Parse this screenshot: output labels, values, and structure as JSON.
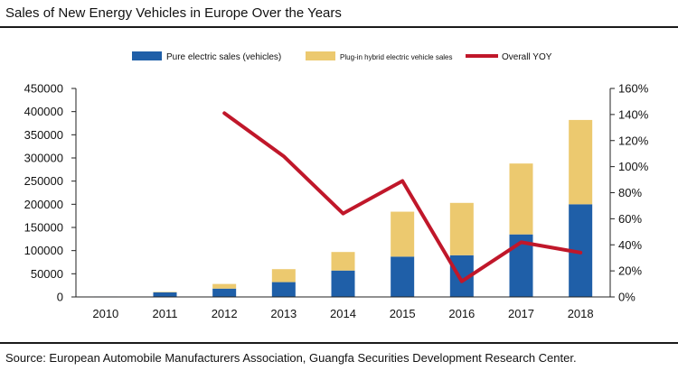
{
  "title": "Sales of New Energy Vehicles in Europe Over the Years",
  "source": "Source: European Automobile Manufacturers Association, Guangfa Securities Development Research Center.",
  "colors": {
    "bev": "#1f5fa8",
    "phev": "#ecc96f",
    "yoy": "#c0172a"
  },
  "chart_data": {
    "type": "bar",
    "stacked": true,
    "categories": [
      "2010",
      "2011",
      "2012",
      "2013",
      "2014",
      "2015",
      "2016",
      "2017",
      "2018"
    ],
    "series": [
      {
        "name": "Pure electric sales (vehicles)",
        "type": "bar",
        "axis": "left",
        "values": [
          1000,
          10000,
          18000,
          32000,
          57000,
          87000,
          90000,
          135000,
          200000
        ]
      },
      {
        "name": "Plug-in hybrid electric vehicle sales",
        "type": "bar",
        "axis": "left",
        "values": [
          0,
          1000,
          10000,
          28000,
          40000,
          97000,
          113000,
          153000,
          182000
        ]
      },
      {
        "name": "Overall YOY",
        "type": "line",
        "axis": "right",
        "values": [
          null,
          null,
          1.41,
          1.08,
          0.64,
          0.89,
          0.12,
          0.42,
          0.34
        ]
      }
    ],
    "ylim_left": [
      0,
      450000
    ],
    "yticks_left": [
      "0",
      "50000",
      "100000",
      "150000",
      "200000",
      "250000",
      "300000",
      "350000",
      "400000",
      "450000"
    ],
    "ylim_right": [
      0,
      1.6
    ],
    "yticks_right": [
      "0%",
      "20%",
      "40%",
      "60%",
      "80%",
      "100%",
      "120%",
      "140%",
      "160%"
    ],
    "legend_position": "top",
    "grid": false
  }
}
